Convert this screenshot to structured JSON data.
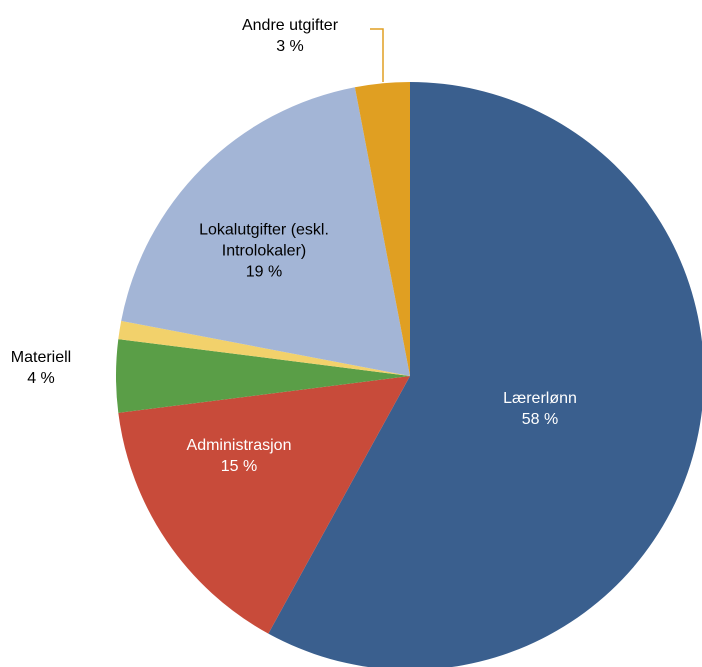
{
  "chart_data": {
    "type": "pie",
    "categories": [
      "Lærerlønn",
      "Administrasjon",
      "Materiell",
      null,
      "Lokalutgifter (eskl. Introlokaler)",
      "Andre utgifter"
    ],
    "values": [
      58,
      15,
      4,
      1,
      19,
      3
    ],
    "value_labels": [
      "58 %",
      "15 %",
      "4 %",
      null,
      "19 %",
      "3 %"
    ],
    "colors": [
      "#3a5f8e",
      "#c84b3a",
      "#5a9e47",
      "#f2d16b",
      "#a3b5d6",
      "#e09f22"
    ]
  }
}
